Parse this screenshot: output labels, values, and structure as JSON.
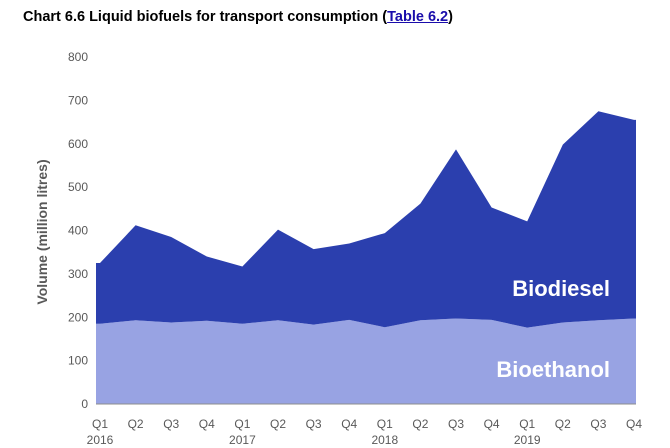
{
  "title": {
    "prefix": "Chart 6.6 Liquid biofuels for transport consumption (",
    "link": "Table 6.2",
    "suffix": ")"
  },
  "chart_data": {
    "type": "area",
    "stacked": true,
    "ylabel": "Volume (million litres)",
    "xlabel": "",
    "ylim": [
      0,
      800
    ],
    "yticks": [
      0,
      100,
      200,
      300,
      400,
      500,
      600,
      700,
      800
    ],
    "grid": false,
    "categories": [
      "Q1",
      "Q2",
      "Q3",
      "Q4",
      "Q1",
      "Q2",
      "Q3",
      "Q4",
      "Q1",
      "Q2",
      "Q3",
      "Q4",
      "Q1",
      "Q2",
      "Q3",
      "Q4"
    ],
    "year_labels": [
      "2016",
      "",
      "",
      "",
      "2017",
      "",
      "",
      "",
      "2018",
      "",
      "",
      "",
      "2019",
      "",
      "",
      ""
    ],
    "series": [
      {
        "name": "Bioethanol",
        "color": "#98A3E3",
        "values": [
          185,
          193,
          188,
          192,
          185,
          193,
          183,
          194,
          177,
          193,
          197,
          194,
          176,
          188,
          193,
          197
        ]
      },
      {
        "name": "Biodiesel",
        "color": "#2B3FAE",
        "values": [
          140,
          219,
          197,
          148,
          132,
          209,
          174,
          176,
          217,
          269,
          390,
          259,
          245,
          410,
          482,
          458
        ]
      }
    ]
  }
}
